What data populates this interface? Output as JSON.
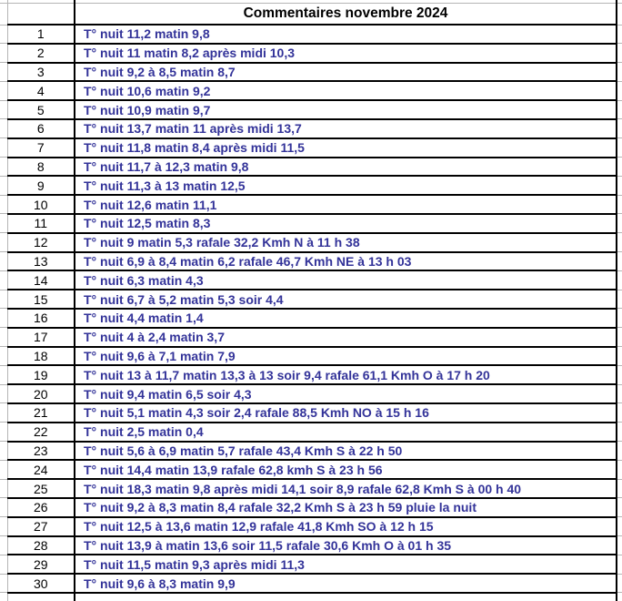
{
  "header": {
    "title": "Commentaires novembre 2024"
  },
  "colors": {
    "comment_text": "#333399",
    "table_border": "#000000",
    "gridline_grey": "#b5b5b5",
    "background": "#ffffff"
  },
  "rows": [
    {
      "num": "1",
      "comment": "T° nuit 11,2 matin 9,8"
    },
    {
      "num": "2",
      "comment": "T° nuit 11 matin 8,2 après midi 10,3"
    },
    {
      "num": "3",
      "comment": "T° nuit 9,2 à 8,5 matin 8,7"
    },
    {
      "num": "4",
      "comment": "T° nuit 10,6 matin 9,2"
    },
    {
      "num": "5",
      "comment": "T° nuit 10,9 matin 9,7"
    },
    {
      "num": "6",
      "comment": "T° nuit 13,7 matin 11 après midi 13,7"
    },
    {
      "num": "7",
      "comment": "T° nuit 11,8 matin 8,4 après midi 11,5"
    },
    {
      "num": "8",
      "comment": "T° nuit 11,7 à 12,3 matin 9,8"
    },
    {
      "num": "9",
      "comment": "T° nuit 11,3 à 13 matin 12,5"
    },
    {
      "num": "10",
      "comment": "T° nuit 12,6 matin 11,1"
    },
    {
      "num": "11",
      "comment": "T° nuit 12,5 matin 8,3"
    },
    {
      "num": "12",
      "comment": "T° nuit 9 matin 5,3 rafale 32,2 Kmh N à 11 h 38"
    },
    {
      "num": "13",
      "comment": "T° nuit 6,9 à 8,4 matin 6,2 rafale 46,7 Kmh NE à 13 h 03"
    },
    {
      "num": "14",
      "comment": "T° nuit 6,3 matin 4,3"
    },
    {
      "num": "15",
      "comment": "T° nuit 6,7 à 5,2 matin 5,3 soir 4,4"
    },
    {
      "num": "16",
      "comment": "T° nuit 4,4 matin 1,4"
    },
    {
      "num": "17",
      "comment": "T° nuit 4 à 2,4 matin 3,7"
    },
    {
      "num": "18",
      "comment": "T° nuit 9,6 à 7,1 matin 7,9"
    },
    {
      "num": "19",
      "comment": "T° nuit 13 à 11,7 matin 13,3 à 13 soir 9,4 rafale 61,1 Kmh O à 17 h 20"
    },
    {
      "num": "20",
      "comment": "T° nuit 9,4 matin 6,5 soir 4,3"
    },
    {
      "num": "21",
      "comment": "T° nuit 5,1 matin 4,3 soir 2,4 rafale 88,5 Kmh NO à 15 h 16"
    },
    {
      "num": "22",
      "comment": "T° nuit 2,5 matin 0,4"
    },
    {
      "num": "23",
      "comment": "T° nuit 5,6 à 6,9 matin 5,7 rafale 43,4 Kmh S à 22 h 50"
    },
    {
      "num": "24",
      "comment": "T° nuit 14,4 matin 13,9 rafale 62,8 kmh S à 23 h 56"
    },
    {
      "num": "25",
      "comment": "T° nuit 18,3 matin 9,8 après midi 14,1 soir 8,9 rafale 62,8 Kmh S à 00 h 40"
    },
    {
      "num": "26",
      "comment": "T° nuit 9,2 à 8,3 matin 8,4 rafale 32,2 Kmh S à 23 h 59 pluie la nuit"
    },
    {
      "num": "27",
      "comment": "T° nuit 12,5 à 13,6 matin 12,9 rafale 41,8 Kmh SO à 12 h 15"
    },
    {
      "num": "28",
      "comment": "T° nuit 13,9 à matin 13,6 soir 11,5 rafale 30,6 Kmh O à 01 h 35"
    },
    {
      "num": "29",
      "comment": "T° nuit 11,5 matin 9,3 après midi 11,3"
    },
    {
      "num": "30",
      "comment": "T° nuit 9,6 à 8,3 matin 9,9"
    }
  ]
}
